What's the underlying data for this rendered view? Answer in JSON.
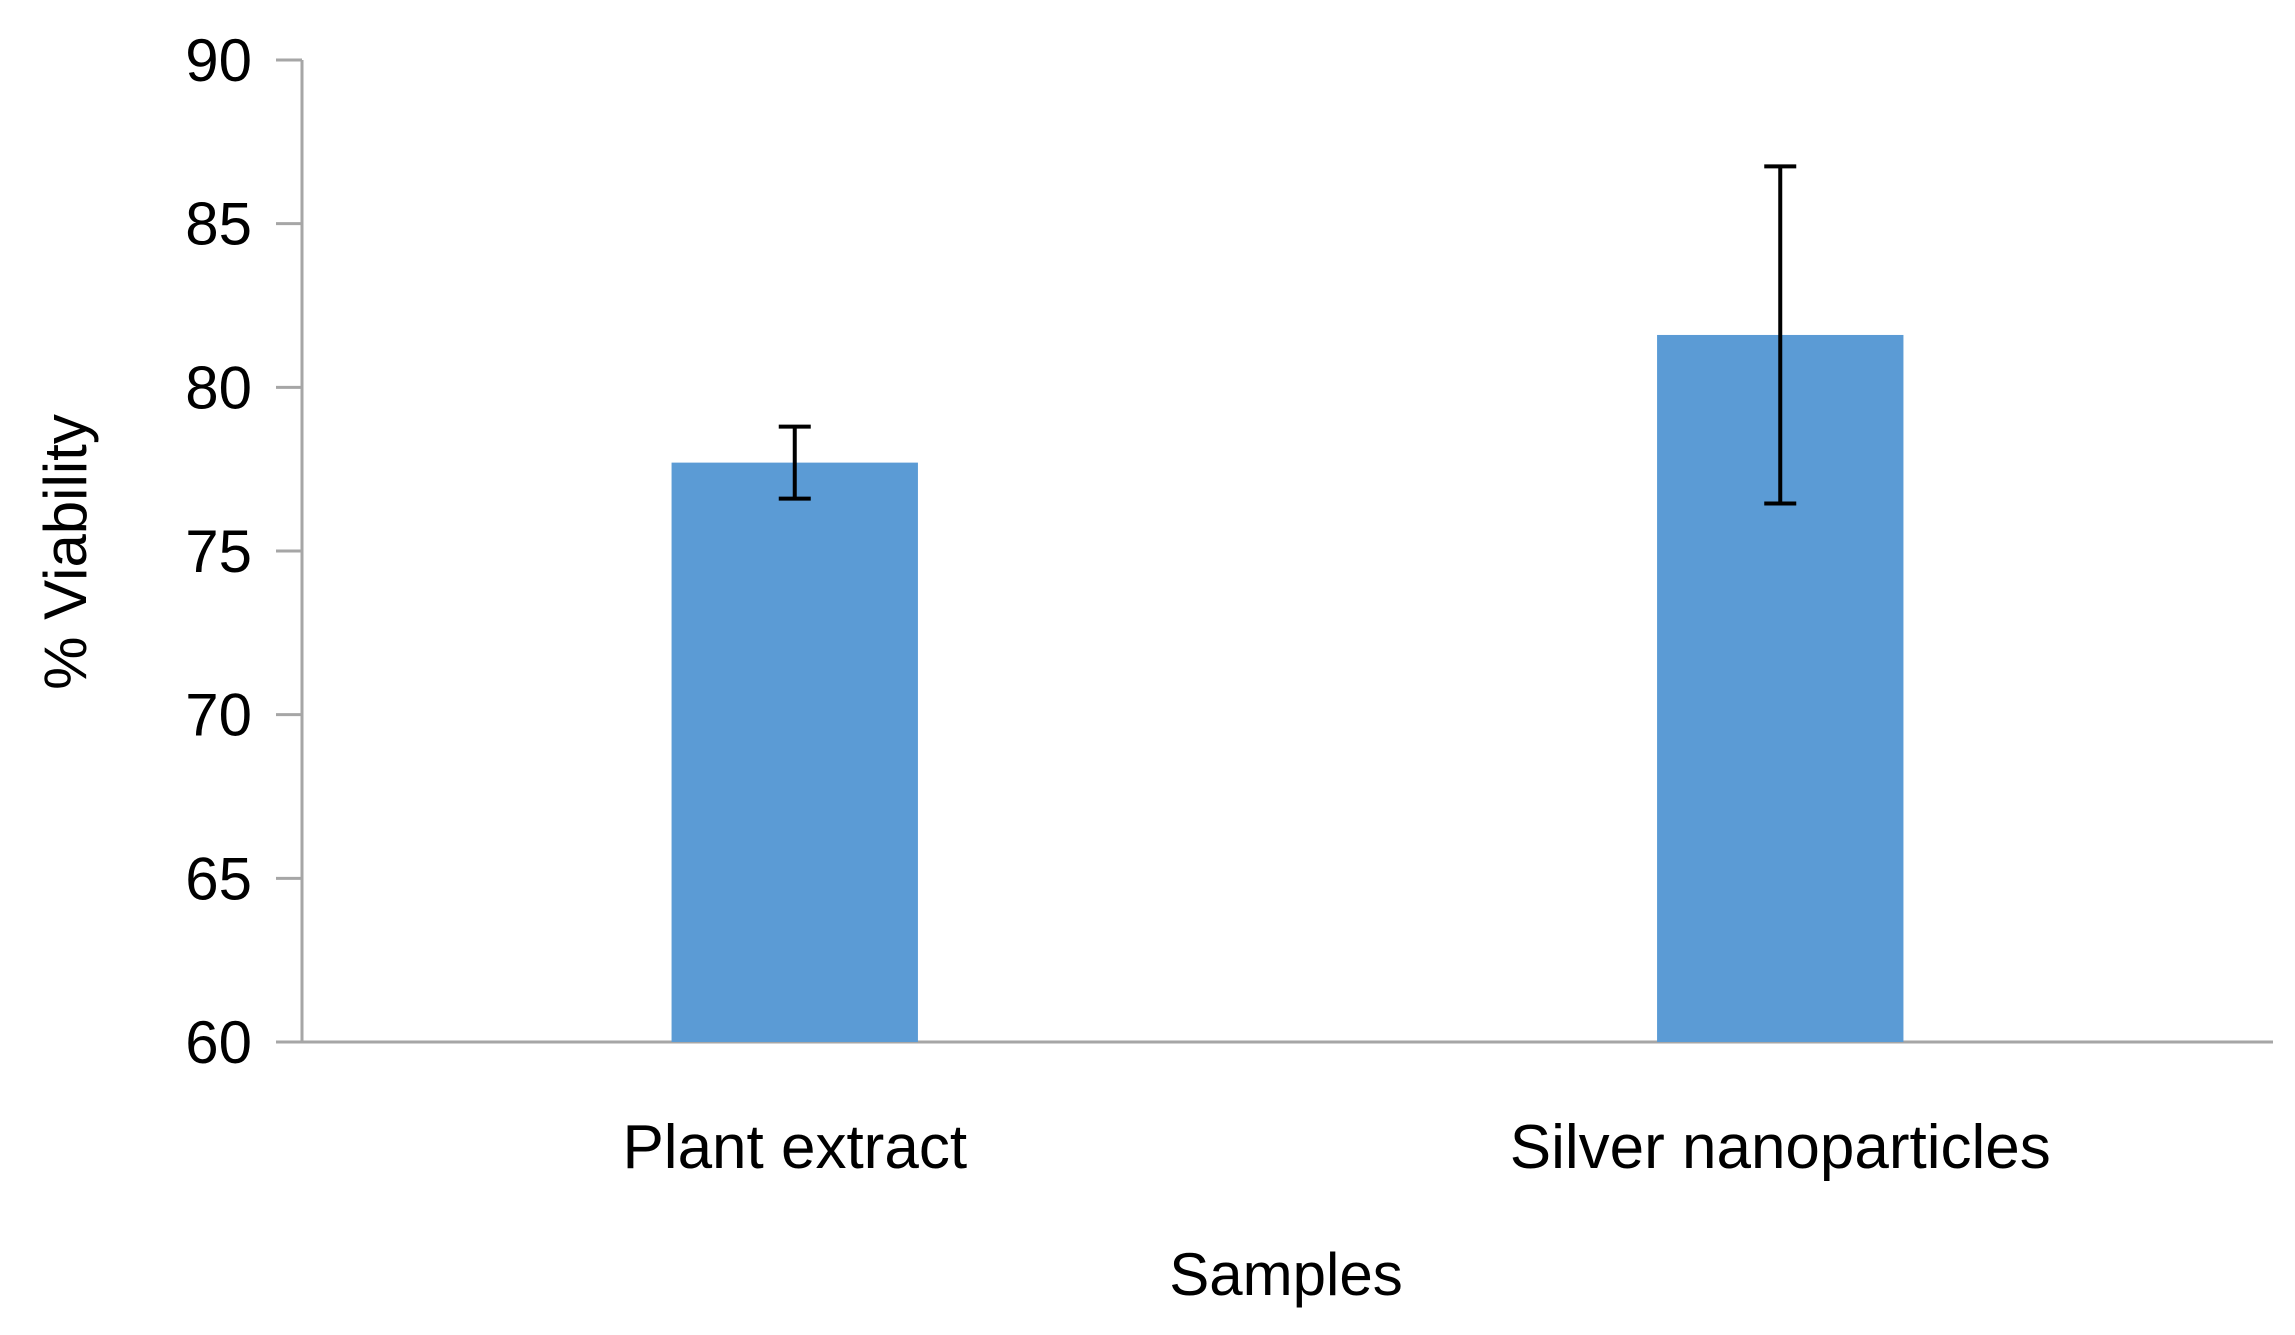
{
  "chart_data": {
    "type": "bar",
    "title": "",
    "xlabel": "Samples",
    "ylabel": "% Viability",
    "categories": [
      "Plant extract",
      "Silver nanoparticles"
    ],
    "values": [
      77.7,
      81.6
    ],
    "errors": [
      1.1,
      5.15
    ],
    "ylim": [
      60,
      90
    ],
    "yticks": [
      60,
      65,
      70,
      75,
      80,
      85,
      90
    ],
    "grid": false,
    "bar_color": "#5B9BD5",
    "error_color": "#000000",
    "axis_color": "#A6A6A6"
  }
}
